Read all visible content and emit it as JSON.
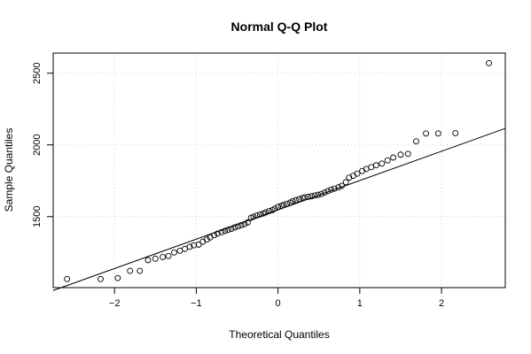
{
  "chart_data": {
    "type": "scatter",
    "title": "Normal Q-Q Plot",
    "xlabel": "Theoretical Quantiles",
    "ylabel": "Sample Quantiles",
    "xlim": [
      -2.75,
      2.78
    ],
    "ylim": [
      1005,
      2640
    ],
    "xticks": [
      -2,
      -1,
      0,
      1,
      2
    ],
    "yticks": [
      1500,
      2000,
      2500
    ],
    "xtick_labels": [
      "−2",
      "−1",
      "0",
      "1",
      "2"
    ],
    "ytick_labels": [
      "1500",
      "2000",
      "2500"
    ],
    "grid": true,
    "reference_line": {
      "x": [
        -2.75,
        2.78
      ],
      "y": [
        985,
        2115
      ]
    },
    "x": [
      -2.58,
      -2.17,
      -1.96,
      -1.81,
      -1.69,
      -1.59,
      -1.5,
      -1.41,
      -1.34,
      -1.27,
      -1.2,
      -1.14,
      -1.08,
      -1.03,
      -0.97,
      -0.92,
      -0.87,
      -0.83,
      -0.78,
      -0.74,
      -0.69,
      -0.65,
      -0.61,
      -0.57,
      -0.53,
      -0.49,
      -0.45,
      -0.41,
      -0.37,
      -0.33,
      -0.3,
      -0.26,
      -0.22,
      -0.18,
      -0.15,
      -0.11,
      -0.07,
      -0.04,
      0.0,
      0.04,
      0.07,
      0.11,
      0.15,
      0.18,
      0.22,
      0.26,
      0.3,
      0.33,
      0.37,
      0.41,
      0.45,
      0.49,
      0.53,
      0.57,
      0.61,
      0.65,
      0.69,
      0.74,
      0.78,
      0.83,
      0.87,
      0.92,
      0.97,
      1.03,
      1.08,
      1.14,
      1.2,
      1.27,
      1.34,
      1.41,
      1.5,
      1.59,
      1.69,
      1.81,
      1.96,
      2.17,
      2.58
    ],
    "y": [
      1065,
      1065,
      1072,
      1122,
      1122,
      1197,
      1207,
      1218,
      1225,
      1250,
      1262,
      1275,
      1290,
      1300,
      1305,
      1325,
      1340,
      1355,
      1370,
      1382,
      1392,
      1400,
      1408,
      1415,
      1425,
      1432,
      1440,
      1448,
      1460,
      1492,
      1500,
      1508,
      1515,
      1522,
      1530,
      1538,
      1545,
      1555,
      1568,
      1575,
      1582,
      1590,
      1598,
      1608,
      1615,
      1622,
      1630,
      1635,
      1638,
      1642,
      1648,
      1652,
      1658,
      1668,
      1678,
      1688,
      1695,
      1705,
      1715,
      1740,
      1772,
      1785,
      1800,
      1818,
      1832,
      1845,
      1858,
      1870,
      1892,
      1912,
      1932,
      1938,
      2025,
      2080,
      2080,
      2082,
      2570
    ]
  }
}
